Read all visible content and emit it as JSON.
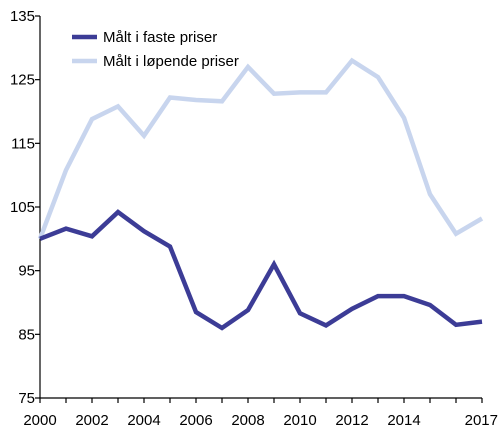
{
  "chart_data": {
    "type": "line",
    "title": "",
    "xlabel": "",
    "ylabel": "",
    "x": [
      2000,
      2001,
      2002,
      2003,
      2004,
      2005,
      2006,
      2007,
      2008,
      2009,
      2010,
      2011,
      2012,
      2013,
      2014,
      2015,
      2016,
      2017
    ],
    "xticks": [
      "2000",
      "2002",
      "2004",
      "2006",
      "2008",
      "2010",
      "2012",
      "2014",
      "2017"
    ],
    "xtick_values": [
      2000,
      2002,
      2004,
      2006,
      2008,
      2010,
      2012,
      2014,
      2017
    ],
    "yticks": [
      "75",
      "85",
      "95",
      "105",
      "115",
      "125",
      "135"
    ],
    "ytick_values": [
      75,
      85,
      95,
      105,
      115,
      125,
      135
    ],
    "xlim": [
      2000,
      2017
    ],
    "ylim": [
      75,
      135
    ],
    "grid": false,
    "legend_position": "top-left",
    "series": [
      {
        "name": "Målt i faste priser",
        "color": "#3c3c96",
        "values": [
          100,
          101.6,
          100.4,
          104.2,
          101.2,
          98.8,
          88.5,
          86.0,
          88.8,
          96.0,
          88.3,
          86.4,
          89.0,
          91.0,
          91.0,
          89.6,
          86.5,
          87.0
        ]
      },
      {
        "name": "Målt i løpende priser",
        "color": "#c8d5ee",
        "values": [
          100,
          110.8,
          118.8,
          120.8,
          116.2,
          122.2,
          121.8,
          121.6,
          127.0,
          122.8,
          123.0,
          123.0,
          128.0,
          125.4,
          119.0,
          107.0,
          100.8,
          103.2
        ]
      }
    ]
  }
}
